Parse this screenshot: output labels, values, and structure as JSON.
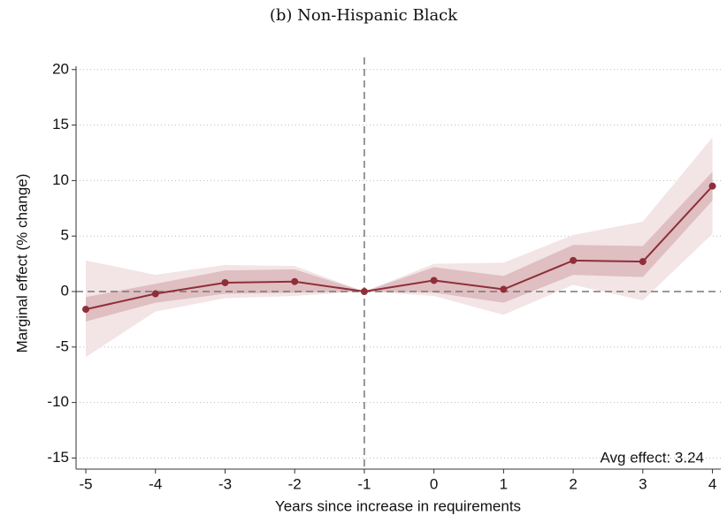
{
  "chart_data": {
    "type": "line",
    "title": "(b) Non-Hispanic Black",
    "xlabel": "Years since increase in requirements",
    "ylabel": "Marginal effect (% change)",
    "annotation": "Avg effect: 3.24",
    "x": [
      -5,
      -4,
      -3,
      -2,
      -1,
      0,
      1,
      2,
      3,
      4
    ],
    "values": [
      -1.6,
      -0.2,
      0.8,
      0.9,
      0,
      1.0,
      0.2,
      2.8,
      2.7,
      9.5
    ],
    "color": "#8e2f3a",
    "bands": [
      {
        "lower": [
          -5.9,
          -1.8,
          -0.6,
          -0.4,
          0,
          -0.4,
          -2.1,
          0.6,
          -0.8,
          5.2
        ],
        "upper": [
          2.8,
          1.5,
          2.4,
          2.3,
          0,
          2.5,
          2.6,
          5.1,
          6.3,
          13.9
        ],
        "color": "#f3e4e5"
      },
      {
        "lower": [
          -2.7,
          -1.0,
          -0.2,
          -0.1,
          0,
          -0.1,
          -1.0,
          1.5,
          1.3,
          8.2
        ],
        "upper": [
          -0.5,
          0.7,
          1.9,
          2.0,
          0,
          2.2,
          1.4,
          4.2,
          4.1,
          10.8
        ],
        "color": "#dfbfc1"
      }
    ],
    "vline": -1,
    "hline": 0,
    "xlim": [
      -5.14,
      4.12
    ],
    "ylim": [
      -16,
      20.3
    ],
    "xticks": [
      -5,
      -4,
      -3,
      -2,
      -1,
      0,
      1,
      2,
      3,
      4
    ],
    "yticks": [
      -15,
      -10,
      -5,
      0,
      5,
      10,
      15,
      20
    ],
    "grid": true
  }
}
